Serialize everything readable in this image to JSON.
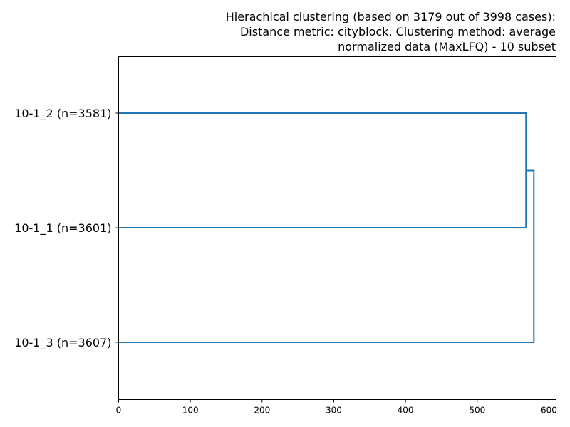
{
  "chart_data": {
    "type": "dendrogram",
    "orientation": "horizontal",
    "title": [
      "Hierachical clustering (based on 3179 out of 3998 cases):",
      "Distance metric: cityblock, Clustering method: average",
      "normalized data (MaxLFQ) - 10 subset"
    ],
    "xlabel": "",
    "ylabel": "",
    "xlim": [
      0,
      610
    ],
    "x_ticks": [
      0,
      100,
      200,
      300,
      400,
      500,
      600
    ],
    "leaves": [
      "10-1_2 (n=3581)",
      "10-1_1 (n=3601)",
      "10-1_3 (n=3607)"
    ],
    "merges": [
      {
        "left": "10-1_2 (n=3581)",
        "right": "10-1_1 (n=3601)",
        "distance": 568
      },
      {
        "left": "cluster(10-1_2, 10-1_1)",
        "right": "10-1_3 (n=3607)",
        "distance": 579
      }
    ],
    "line_color": "#1f77b4",
    "grid": false
  }
}
